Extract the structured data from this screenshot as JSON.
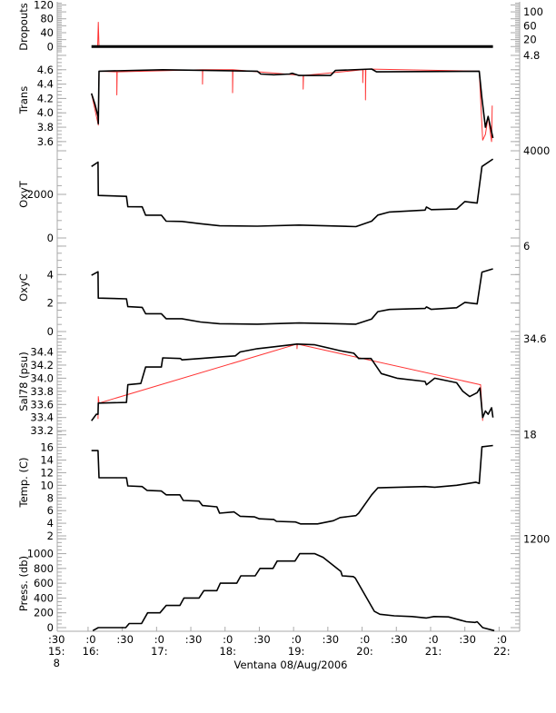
{
  "chart_data": {
    "type": "line",
    "title": "Ventana 08/Aug/2006",
    "xlabel": "Ventana 08/Aug/2006",
    "xlim": [
      15.55,
      22.3
    ],
    "x_ticks": {
      "values": [
        15.5,
        16,
        16.5,
        17,
        17.5,
        18,
        18.5,
        19,
        19.5,
        20,
        20.5,
        21,
        21.5,
        22
      ],
      "minute": [
        ":30",
        ":0",
        ":30",
        ":0",
        ":30",
        ":0",
        ":30",
        ":0",
        ":30",
        ":0",
        ":30",
        ":0",
        ":30",
        ":0"
      ],
      "hour": [
        "15:",
        "16:",
        "",
        "17:",
        "",
        "18:",
        "",
        "19:",
        "",
        "20:",
        "",
        "21:",
        "",
        "22:"
      ],
      "day": "8"
    },
    "colors": {
      "processed": "#000000",
      "raw": "#ff0000",
      "axis": "#aaaaaa"
    },
    "panels": [
      {
        "ylabel": "Dropouts",
        "ylim": [
          -15,
          129
        ],
        "tick_values": [
          0,
          20,
          40,
          60,
          80,
          100,
          120
        ],
        "tick_labels": [
          "0",
          "20",
          "40",
          "60",
          "80",
          "100",
          "120"
        ],
        "series": [
          {
            "name": "raw",
            "x": [
              16.14,
              16.15,
              16.16
            ],
            "y": [
              0,
              70,
              0
            ]
          },
          {
            "name": "processed",
            "x": [
              16.05,
              21.91
            ],
            "y": [
              0,
              0
            ]
          }
        ]
      },
      {
        "ylabel": "Trans",
        "ylim": [
          3.51,
          4.85
        ],
        "tick_values": [
          3.6,
          3.8,
          4.0,
          4.2,
          4.4,
          4.6,
          4.8
        ],
        "tick_labels": [
          "3.6",
          "3.8",
          "4.0",
          "4.2",
          "4.4",
          "4.6",
          "4.8"
        ],
        "series": [
          {
            "name": "raw",
            "x": [
              16.05,
              16.15,
              16.16,
              16.42,
              16.42,
              16.425,
              17.67,
              17.67,
              17.675,
              18.11,
              18.11,
              18.115,
              19.14,
              19.14,
              19.145,
              20.01,
              20.01,
              20.015,
              20.05,
              20.05,
              20.055,
              21.71,
              21.76,
              21.8,
              21.84,
              21.89,
              21.9
            ],
            "y": [
              4.27,
              3.83,
              4.58,
              4.57,
              4.25,
              4.57,
              4.6,
              4.4,
              4.6,
              4.6,
              4.28,
              4.6,
              4.52,
              4.33,
              4.52,
              4.6,
              4.42,
              4.6,
              4.61,
              4.18,
              4.61,
              4.58,
              3.62,
              3.7,
              3.95,
              3.6,
              4.1
            ]
          },
          {
            "name": "processed",
            "x": [
              16.05,
              16.1,
              16.145,
              16.15,
              16.16,
              17.09,
              18.47,
              18.52,
              18.71,
              18.94,
              18.98,
              19.08,
              19.54,
              19.61,
              20.14,
              20.21,
              21.71,
              21.75,
              21.8,
              21.84,
              21.91
            ],
            "y": [
              4.27,
              4.12,
              3.95,
              3.85,
              4.58,
              4.6,
              4.58,
              4.54,
              4.53,
              4.54,
              4.55,
              4.52,
              4.52,
              4.59,
              4.61,
              4.57,
              4.58,
              4.2,
              3.8,
              3.95,
              3.65
            ]
          }
        ]
      },
      {
        "ylabel": "OxyT",
        "ylim": [
          -125,
          4125
        ],
        "tick_values": [
          0,
          2000,
          4000
        ],
        "tick_labels": [
          "0",
          "2000",
          "4000"
        ],
        "series": [
          {
            "name": "processed",
            "x": [
              16.05,
              16.145,
              16.15,
              16.56,
              16.58,
              16.79,
              16.84,
              17.07,
              17.14,
              17.37,
              17.64,
              17.92,
              18.47,
              19.08,
              19.91,
              20.14,
              20.23,
              20.4,
              20.92,
              20.94,
              21.01,
              21.38,
              21.5,
              21.68,
              21.75,
              21.91
            ],
            "y": [
              3280,
              3480,
              1950,
              1910,
              1435,
              1430,
              1045,
              1045,
              770,
              760,
              655,
              560,
              540,
              590,
              520,
              770,
              1050,
              1190,
              1280,
              1420,
              1300,
              1330,
              1670,
              1600,
              3280,
              3620
            ]
          }
        ]
      },
      {
        "ylabel": "OxyC",
        "ylim": [
          -0.19,
          6.38
        ],
        "tick_values": [
          0,
          2,
          4,
          6
        ],
        "tick_labels": [
          "0",
          "2",
          "4",
          "6"
        ],
        "series": [
          {
            "name": "processed",
            "x": [
              16.05,
              16.145,
              16.15,
              16.56,
              16.58,
              16.79,
              16.84,
              17.07,
              17.14,
              17.37,
              17.64,
              17.92,
              18.47,
              19.08,
              19.91,
              20.14,
              20.23,
              20.4,
              20.92,
              20.94,
              21.01,
              21.38,
              21.5,
              21.68,
              21.75,
              21.91
            ],
            "y": [
              3.95,
              4.2,
              2.35,
              2.3,
              1.75,
              1.7,
              1.25,
              1.25,
              0.9,
              0.9,
              0.67,
              0.55,
              0.52,
              0.6,
              0.52,
              0.88,
              1.4,
              1.55,
              1.62,
              1.73,
              1.56,
              1.67,
              2.05,
              1.94,
              4.17,
              4.4
            ]
          }
        ]
      },
      {
        "ylabel": "Sal78 (psu)",
        "ylim": [
          33.23,
          34.67
        ],
        "tick_values": [
          33.2,
          33.4,
          33.6,
          33.8,
          34.0,
          34.2,
          34.4,
          34.6
        ],
        "tick_labels": [
          "33.2",
          "33.4",
          "33.6",
          "33.8",
          "34.0",
          "34.2",
          "34.4",
          "34.6"
        ],
        "series": [
          {
            "name": "raw",
            "x": [
              16.145,
              16.15,
              16.16,
              19.05,
              19.05,
              19.055,
              21.73,
              21.76
            ],
            "y": [
              33.38,
              33.72,
              33.62,
              34.52,
              34.45,
              34.52,
              33.9,
              33.35
            ]
          },
          {
            "name": "processed",
            "x": [
              16.05,
              16.12,
              16.145,
              16.15,
              16.56,
              16.58,
              16.77,
              16.84,
              17.07,
              17.09,
              17.35,
              17.37,
              17.64,
              18.15,
              18.22,
              18.47,
              18.73,
              19.05,
              19.31,
              19.68,
              19.88,
              19.95,
              20.13,
              20.28,
              20.51,
              20.92,
              20.94,
              21.06,
              21.38,
              21.47,
              21.57,
              21.68,
              21.72,
              21.76,
              21.8,
              21.84,
              21.89,
              21.91
            ],
            "y": [
              33.35,
              33.45,
              33.45,
              33.62,
              33.63,
              33.9,
              33.92,
              34.17,
              34.17,
              34.31,
              34.3,
              34.28,
              34.3,
              34.34,
              34.4,
              34.45,
              34.48,
              34.52,
              34.51,
              34.42,
              34.38,
              34.3,
              34.3,
              34.07,
              34.0,
              33.95,
              33.9,
              34.0,
              33.93,
              33.8,
              33.72,
              33.78,
              33.85,
              33.4,
              33.5,
              33.45,
              33.55,
              33.4
            ]
          }
        ]
      },
      {
        "ylabel": "Temp. (C)",
        "ylim": [
          2.0,
          18.96
        ],
        "tick_values": [
          2,
          4,
          6,
          8,
          10,
          12,
          14,
          16,
          18
        ],
        "tick_labels": [
          "2",
          "4",
          "6",
          "8",
          "10",
          "12",
          "14",
          "16",
          "18"
        ],
        "series": [
          {
            "name": "processed",
            "x": [
              16.05,
              16.145,
              16.16,
              16.56,
              16.58,
              16.79,
              16.86,
              17.07,
              17.14,
              17.34,
              17.39,
              17.62,
              17.67,
              17.88,
              17.92,
              18.13,
              18.22,
              18.43,
              18.5,
              18.71,
              18.75,
              19.03,
              19.1,
              19.35,
              19.58,
              19.68,
              19.91,
              19.95,
              20.14,
              20.23,
              20.92,
              21.06,
              21.38,
              21.66,
              21.71,
              21.75,
              21.91
            ],
            "y": [
              15.5,
              15.5,
              11.2,
              11.2,
              9.9,
              9.8,
              9.2,
              9.1,
              8.5,
              8.5,
              7.6,
              7.5,
              6.8,
              6.6,
              5.6,
              5.8,
              5.1,
              5.0,
              4.7,
              4.6,
              4.3,
              4.2,
              3.9,
              3.9,
              4.4,
              4.9,
              5.2,
              5.6,
              8.5,
              9.6,
              9.8,
              9.7,
              10.0,
              10.5,
              10.3,
              16.1,
              16.3
            ]
          }
        ]
      },
      {
        "ylabel": "Press. (db)",
        "ylim": [
          -49,
          1240
        ],
        "tick_values": [
          0,
          200,
          400,
          600,
          800,
          1000,
          1200
        ],
        "tick_labels": [
          "0",
          "200",
          "400",
          "600",
          "800",
          "1000",
          "1200"
        ],
        "series": [
          {
            "name": "processed",
            "x": [
              16.07,
              16.15,
              16.55,
              16.6,
              16.78,
              16.87,
              17.05,
              17.14,
              17.34,
              17.4,
              17.62,
              17.69,
              17.88,
              17.93,
              18.17,
              18.23,
              18.44,
              18.51,
              18.7,
              18.76,
              19.02,
              19.09,
              19.31,
              19.43,
              19.69,
              19.71,
              19.87,
              19.9,
              20.18,
              20.26,
              20.47,
              20.73,
              20.94,
              21.05,
              21.26,
              21.52,
              21.65,
              21.68,
              21.76,
              21.93
            ],
            "y": [
              -40,
              0,
              0,
              55,
              55,
              200,
              200,
              300,
              300,
              400,
              400,
              500,
              500,
              600,
              600,
              700,
              700,
              800,
              800,
              900,
              900,
              1000,
              1000,
              950,
              760,
              700,
              690,
              670,
              220,
              180,
              160,
              150,
              130,
              150,
              145,
              80,
              70,
              80,
              0,
              -40
            ]
          }
        ]
      }
    ]
  }
}
